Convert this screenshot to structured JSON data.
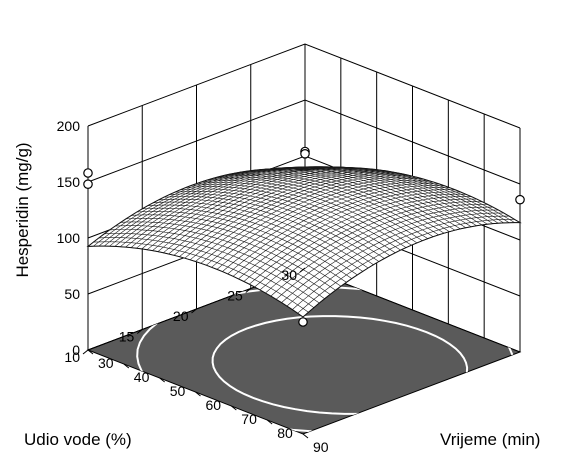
{
  "chart_data": {
    "type": "surface3d",
    "title": "",
    "zlabel": "Hesperidin (mg/g)",
    "xlabel": "Vrijeme (min)",
    "ylabel": "Udio vode (%)",
    "x_ticks": [
      "30",
      "40",
      "50",
      "60",
      "70",
      "80",
      "90"
    ],
    "y_ticks": [
      "10",
      "15",
      "20",
      "25",
      "30"
    ],
    "z_ticks": [
      "0",
      "50",
      "100",
      "150",
      "200"
    ],
    "xlim": [
      30,
      90
    ],
    "ylim": [
      10,
      30
    ],
    "zlim": [
      0,
      200
    ],
    "grid": true,
    "surface_color": "#ffffff",
    "mesh_color": "#1a1a1a",
    "floor_color": "#5a5a5a",
    "contour_color": "#ffffff",
    "surface_samples": [
      {
        "x": 30,
        "y": 30,
        "z": 104
      },
      {
        "x": 30,
        "y": 10,
        "z": 100
      },
      {
        "x": 90,
        "y": 30,
        "z": 132
      },
      {
        "x": 90,
        "y": 10,
        "z": 125
      },
      {
        "x": 60,
        "y": 20,
        "z": 140
      }
    ],
    "design_points": [
      {
        "x": 30,
        "y": 30,
        "z": 104
      },
      {
        "x": 30,
        "y": 30,
        "z": 102
      },
      {
        "x": 90,
        "y": 30,
        "z": 136
      },
      {
        "x": 30,
        "y": 10,
        "z": 158
      },
      {
        "x": 30,
        "y": 10,
        "z": 148
      },
      {
        "x": 90,
        "y": 10,
        "z": 100
      }
    ]
  }
}
